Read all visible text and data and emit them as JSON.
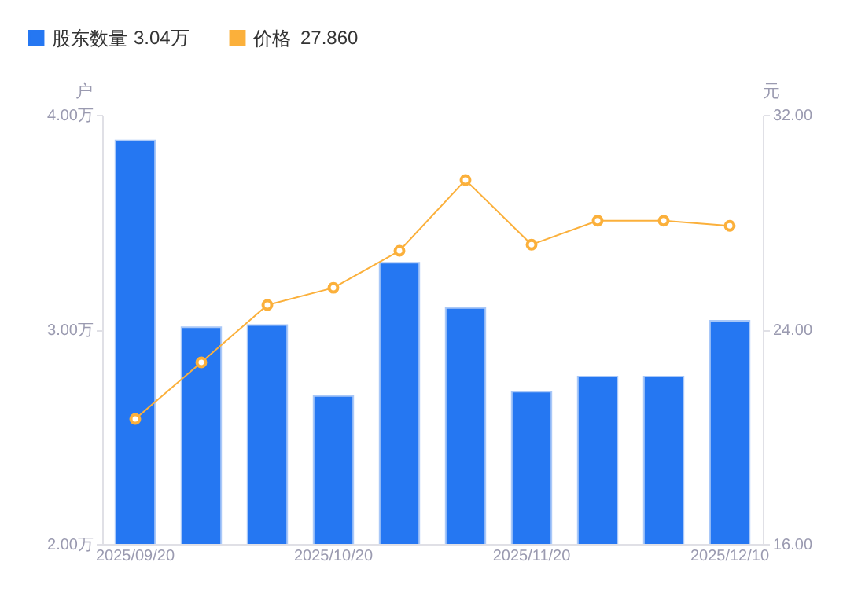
{
  "chart_data": {
    "type": "bar",
    "categories": [
      "2025/09/20",
      null,
      null,
      "2025/10/20",
      null,
      null,
      "2025/11/20",
      null,
      null,
      "2025/12/10"
    ],
    "ylabel": "户",
    "y2label": "元",
    "legend": "top left",
    "grid": false,
    "marker": "circle",
    "ylim": [
      2,
      4
    ],
    "yticks": [
      {
        "value": 2,
        "label": "2.00万"
      },
      {
        "value": 3,
        "label": "3.00万"
      },
      {
        "value": 4,
        "label": "4.00万"
      }
    ],
    "y2lim": [
      16,
      32
    ],
    "y2ticks": [
      {
        "value": 16,
        "label": "16.00"
      },
      {
        "value": 24,
        "label": "24.00"
      },
      {
        "value": 32,
        "label": "32.00"
      }
    ],
    "annotations": [
      "3.04万",
      "27.860"
    ],
    "series": [
      {
        "name": "股东数量",
        "color": "#2577f2",
        "values": [
          3.88,
          3.01,
          3.02,
          2.69,
          3.31,
          3.1,
          2.71,
          2.78,
          2.78,
          3.04
        ]
      },
      {
        "name": "价格",
        "type": "line",
        "axis": "y2",
        "color": "#fbb03b",
        "values": [
          20.66,
          22.77,
          24.91,
          25.55,
          26.93,
          29.57,
          27.16,
          28.05,
          28.05,
          27.86
        ]
      }
    ]
  }
}
